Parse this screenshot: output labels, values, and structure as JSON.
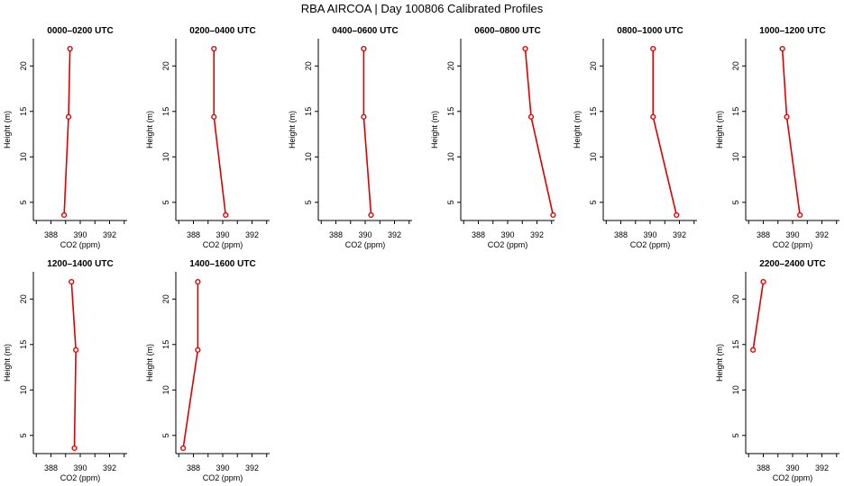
{
  "figure": {
    "title": "RBA AIRCOA |  Day 100806  Calibrated Profiles"
  },
  "style": {
    "series_color": "#dd0000",
    "axis_color": "#000000"
  },
  "chart_data": [
    {
      "type": "line",
      "title": "0000–0200 UTC",
      "xlabel": "CO2 (ppm)",
      "ylabel": "Height (m)",
      "xlim": [
        386.8,
        393.2
      ],
      "ylim": [
        3,
        23
      ],
      "xticks": [
        388,
        390,
        392
      ],
      "yticks": [
        5,
        10,
        15,
        20
      ],
      "series": [
        {
          "x": [
            388.9,
            389.2,
            389.3
          ],
          "y": [
            3.6,
            14.4,
            21.9
          ]
        }
      ]
    },
    {
      "type": "line",
      "title": "0200–0400 UTC",
      "xlabel": "CO2 (ppm)",
      "ylabel": "Height (m)",
      "xlim": [
        386.8,
        393.2
      ],
      "ylim": [
        3,
        23
      ],
      "xticks": [
        388,
        390,
        392
      ],
      "yticks": [
        5,
        10,
        15,
        20
      ],
      "series": [
        {
          "x": [
            390.2,
            389.4,
            389.4
          ],
          "y": [
            3.6,
            14.4,
            21.9
          ]
        }
      ]
    },
    {
      "type": "line",
      "title": "0400–0600 UTC",
      "xlabel": "CO2 (ppm)",
      "ylabel": "Height (m)",
      "xlim": [
        386.8,
        393.2
      ],
      "ylim": [
        3,
        23
      ],
      "xticks": [
        388,
        390,
        392
      ],
      "yticks": [
        5,
        10,
        15,
        20
      ],
      "series": [
        {
          "x": [
            390.4,
            389.9,
            389.9
          ],
          "y": [
            3.6,
            14.4,
            21.9
          ]
        }
      ]
    },
    {
      "type": "line",
      "title": "0600–0800 UTC",
      "xlabel": "CO2 (ppm)",
      "ylabel": "Height (m)",
      "xlim": [
        386.8,
        393.2
      ],
      "ylim": [
        3,
        23
      ],
      "xticks": [
        388,
        390,
        392
      ],
      "yticks": [
        5,
        10,
        15,
        20
      ],
      "series": [
        {
          "x": [
            393.1,
            391.6,
            391.2
          ],
          "y": [
            3.6,
            14.4,
            21.9
          ]
        }
      ]
    },
    {
      "type": "line",
      "title": "0800–1000 UTC",
      "xlabel": "CO2 (ppm)",
      "ylabel": "Height (m)",
      "xlim": [
        386.8,
        393.2
      ],
      "ylim": [
        3,
        23
      ],
      "xticks": [
        388,
        390,
        392
      ],
      "yticks": [
        5,
        10,
        15,
        20
      ],
      "series": [
        {
          "x": [
            391.8,
            390.2,
            390.2
          ],
          "y": [
            3.6,
            14.4,
            21.9
          ]
        }
      ]
    },
    {
      "type": "line",
      "title": "1000–1200 UTC",
      "xlabel": "CO2 (ppm)",
      "ylabel": "Height (m)",
      "xlim": [
        386.8,
        393.2
      ],
      "ylim": [
        3,
        23
      ],
      "xticks": [
        388,
        390,
        392
      ],
      "yticks": [
        5,
        10,
        15,
        20
      ],
      "series": [
        {
          "x": [
            390.5,
            389.6,
            389.3
          ],
          "y": [
            3.6,
            14.4,
            21.9
          ]
        }
      ]
    },
    {
      "type": "line",
      "title": "1200–1400 UTC",
      "xlabel": "CO2 (ppm)",
      "ylabel": "Height (m)",
      "xlim": [
        386.8,
        393.2
      ],
      "ylim": [
        3,
        23
      ],
      "xticks": [
        388,
        390,
        392
      ],
      "yticks": [
        5,
        10,
        15,
        20
      ],
      "series": [
        {
          "x": [
            389.6,
            389.7,
            389.4
          ],
          "y": [
            3.6,
            14.4,
            21.9
          ]
        }
      ]
    },
    {
      "type": "line",
      "title": "1400–1600 UTC",
      "xlabel": "CO2 (ppm)",
      "ylabel": "Height (m)",
      "xlim": [
        386.8,
        393.2
      ],
      "ylim": [
        3,
        23
      ],
      "xticks": [
        388,
        390,
        392
      ],
      "yticks": [
        5,
        10,
        15,
        20
      ],
      "series": [
        {
          "x": [
            387.3,
            388.3,
            388.3
          ],
          "y": [
            3.6,
            14.4,
            21.9
          ]
        }
      ]
    },
    {
      "type": "line",
      "title": "2200–2400 UTC",
      "xlabel": "CO2 (ppm)",
      "ylabel": "Height (m)",
      "xlim": [
        386.8,
        393.2
      ],
      "ylim": [
        3,
        23
      ],
      "xticks": [
        388,
        390,
        392
      ],
      "yticks": [
        5,
        10,
        15,
        20
      ],
      "series": [
        {
          "x": [
            387.3,
            388.0
          ],
          "y": [
            14.4,
            21.9
          ]
        }
      ]
    }
  ]
}
